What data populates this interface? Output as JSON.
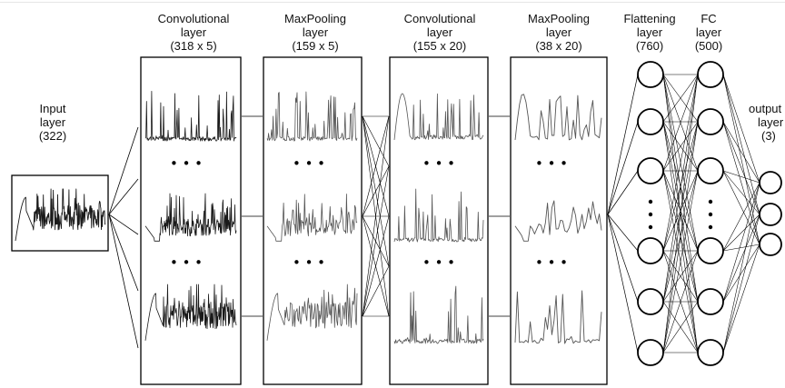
{
  "labels": {
    "input": [
      "Input",
      "layer",
      "(322)"
    ],
    "conv1": [
      "Convolutional",
      "layer",
      "(318 x 5)"
    ],
    "pool1": [
      "MaxPooling",
      "layer",
      "(159 x 5)"
    ],
    "conv2": [
      "Convolutional",
      "layer",
      "(155 x 20)"
    ],
    "pool2": [
      "MaxPooling",
      "layer",
      "(38 x 20)"
    ],
    "flatten": [
      "Flattening",
      "layer",
      "(760)"
    ],
    "fc": [
      "FC",
      "layer",
      "(500)"
    ],
    "output": [
      "output",
      "layer",
      "(3)"
    ]
  },
  "ellipsis": "• • •",
  "vertical_ellipsis": "⋮",
  "colors": {
    "line": "#000000",
    "signal": "#1a1a1a",
    "light_signal": "#555555"
  }
}
